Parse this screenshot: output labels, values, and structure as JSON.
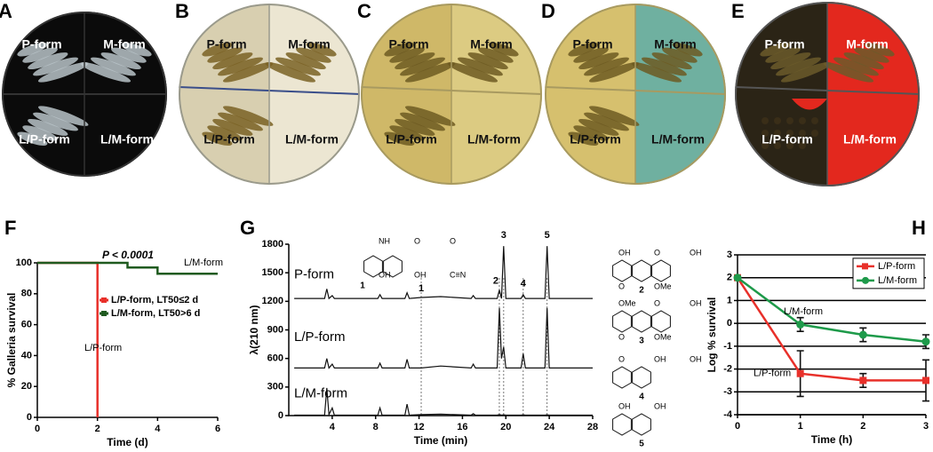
{
  "panels": [
    {
      "label": "A",
      "quadrants": [
        "P-form",
        "M-form",
        "L/P-form",
        "L/M-form"
      ]
    },
    {
      "label": "B",
      "quadrants": [
        "P-form",
        "M-form",
        "L/P-form",
        "L/M-form"
      ]
    },
    {
      "label": "C",
      "quadrants": [
        "P-form",
        "M-form",
        "L/P-form",
        "L/M-form"
      ]
    },
    {
      "label": "D",
      "quadrants": [
        "P-form",
        "M-form",
        "L/P-form",
        "L/M-form"
      ]
    },
    {
      "label": "E",
      "quadrants": [
        "P-form",
        "M-form",
        "L/P-form",
        "L/M-form"
      ]
    }
  ],
  "chart_data": [
    {
      "type": "line",
      "step": true,
      "panel_label": "F",
      "xlabel": "Time (d)",
      "ylabel": "% Galleria survival",
      "xlim": [
        0,
        6
      ],
      "xticks": [
        0,
        2,
        4,
        6
      ],
      "ylim": [
        0,
        100
      ],
      "yticks": [
        0,
        20,
        40,
        60,
        80,
        100
      ],
      "annotations": [
        "P < 0.0001",
        "L/M-form",
        "L/P-form"
      ],
      "series": [
        {
          "name": "L/P-form, LT50≤2 d",
          "color": "#e8302a",
          "x": [
            0,
            2,
            2
          ],
          "values": [
            100,
            100,
            0
          ]
        },
        {
          "name": "L/M-form, LT50>6 d",
          "color": "#1f5a1f",
          "x": [
            0,
            3,
            3,
            4,
            4,
            6
          ],
          "values": [
            100,
            100,
            97,
            97,
            93,
            93
          ]
        }
      ]
    },
    {
      "type": "line",
      "panel_label": "G",
      "xlabel": "Time (min)",
      "ylabel": "λ(210 nm)",
      "xlim": [
        0,
        28
      ],
      "xticks": [
        4,
        8,
        12,
        16,
        20,
        24,
        28
      ],
      "ylim": [
        0,
        1800
      ],
      "yticks": [
        0,
        300,
        600,
        900,
        1200,
        1500,
        1800
      ],
      "peaks": [
        {
          "label": "1",
          "x": 12.2
        },
        {
          "label": "2",
          "x": 19.4
        },
        {
          "label": "3",
          "x": 19.8
        },
        {
          "label": "4",
          "x": 21.6
        },
        {
          "label": "5",
          "x": 23.8
        }
      ],
      "series": [
        {
          "name": "P-form",
          "color": "#111111",
          "x": [
            0.5,
            3.3,
            3.5,
            3.7,
            4.0,
            4.2,
            8.2,
            8.4,
            8.6,
            10.7,
            10.9,
            11.1,
            12.2,
            14,
            16.8,
            17,
            17.2,
            19.2,
            19.4,
            19.6,
            19.8,
            20.0,
            21.4,
            21.6,
            21.8,
            23.6,
            23.8,
            24.0,
            28
          ],
          "values": [
            1230,
            1230,
            1330,
            1230,
            1260,
            1230,
            1230,
            1270,
            1230,
            1230,
            1290,
            1230,
            1240,
            1250,
            1230,
            1260,
            1230,
            1230,
            1320,
            1230,
            1780,
            1230,
            1230,
            1270,
            1230,
            1230,
            1780,
            1230,
            1230
          ]
        },
        {
          "name": "L/P-form",
          "color": "#111111",
          "x": [
            0.5,
            3.3,
            3.5,
            3.7,
            4.0,
            4.2,
            8.2,
            8.4,
            8.6,
            10.7,
            10.9,
            11.1,
            12.2,
            14,
            16.8,
            17,
            17.2,
            19.2,
            19.4,
            19.6,
            19.8,
            20.0,
            21.4,
            21.6,
            21.8,
            23.6,
            23.8,
            24.0,
            28
          ],
          "values": [
            500,
            500,
            600,
            500,
            540,
            500,
            500,
            550,
            500,
            500,
            590,
            500,
            500,
            520,
            500,
            540,
            500,
            500,
            1130,
            600,
            720,
            500,
            500,
            650,
            500,
            500,
            1130,
            500,
            500
          ]
        },
        {
          "name": "L/M-form",
          "color": "#111111",
          "x": [
            0.5,
            3.3,
            3.5,
            3.7,
            4.0,
            4.2,
            8.2,
            8.4,
            8.6,
            10.7,
            10.9,
            11.1,
            12.2,
            14,
            16.8,
            17,
            17.2,
            19.2,
            19.4,
            19.6,
            19.8,
            20.0,
            21.4,
            21.6,
            21.8,
            23.6,
            23.8,
            24.0,
            28
          ],
          "values": [
            5,
            5,
            290,
            10,
            80,
            5,
            5,
            80,
            5,
            5,
            120,
            5,
            10,
            15,
            5,
            20,
            5,
            5,
            10,
            5,
            8,
            5,
            5,
            8,
            5,
            5,
            8,
            5,
            5
          ]
        }
      ],
      "structures": [
        {
          "number": "1",
          "groups": [
            "NH",
            "O",
            "O",
            "OH",
            "OH",
            "C≡N"
          ]
        },
        {
          "number": "2",
          "groups": [
            "OH",
            "O",
            "OH",
            "O",
            "OMe"
          ]
        },
        {
          "number": "3",
          "groups": [
            "OMe",
            "O",
            "OH",
            "O",
            "OMe"
          ]
        },
        {
          "number": "4",
          "groups": [
            "O",
            "OH",
            "OH"
          ]
        },
        {
          "number": "5",
          "groups": [
            "OH",
            "OH"
          ]
        }
      ]
    },
    {
      "type": "line",
      "panel_label": "H",
      "xlabel": "Time (h)",
      "ylabel": "Log % survival",
      "xlim": [
        0,
        3
      ],
      "xticks": [
        0,
        1,
        2,
        3
      ],
      "ylim": [
        -4,
        3
      ],
      "yticks": [
        -4,
        -3,
        -2,
        -1,
        0,
        1,
        2,
        3
      ],
      "grid": true,
      "legend": "upper right",
      "annotations": [
        "L/M-form",
        "L/P-form"
      ],
      "series": [
        {
          "name": "L/P-form",
          "color": "#e8302a",
          "marker": "square",
          "x": [
            0,
            1,
            2,
            3
          ],
          "values": [
            2,
            -2.2,
            -2.5,
            -2.5
          ],
          "errors": [
            0,
            1,
            0.3,
            0.9
          ]
        },
        {
          "name": "L/M-form",
          "color": "#1e9a4a",
          "marker": "circle",
          "x": [
            0,
            1,
            2,
            3
          ],
          "values": [
            2,
            -0.05,
            -0.5,
            -0.8
          ],
          "errors": [
            0,
            0.3,
            0.3,
            0.3
          ]
        }
      ]
    }
  ]
}
